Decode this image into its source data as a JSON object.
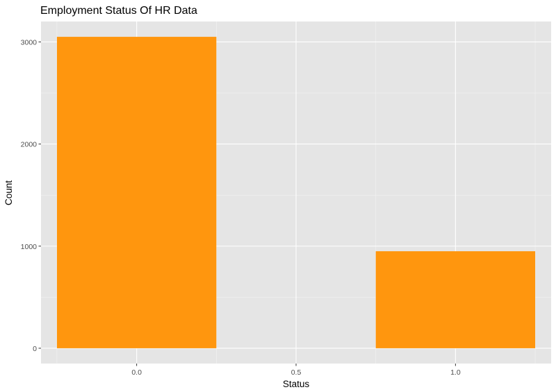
{
  "chart_data": {
    "type": "bar",
    "title": "Employment Status Of HR Data",
    "xlabel": "Status",
    "ylabel": "Count",
    "x": [
      0,
      1
    ],
    "values": [
      3050,
      950
    ],
    "bar_width": 1.0,
    "xlim": [
      -0.3,
      1.3
    ],
    "ylim": [
      -150,
      3200
    ],
    "x_ticks": [
      0.0,
      0.5,
      1.0
    ],
    "x_tick_labels": [
      "0.0",
      "0.5",
      "1.0"
    ],
    "y_ticks": [
      0,
      1000,
      2000,
      3000
    ],
    "y_tick_labels": [
      "0",
      "1000",
      "2000",
      "3000"
    ],
    "grid": true,
    "legend": "none",
    "colors": {
      "bar": "#FF960E",
      "panel": "#E5E5E5",
      "grid_major": "#FFFFFF",
      "grid_minor": "#F2F2F2",
      "tick_text": "#4D4D4D",
      "tick_mark": "#333333"
    }
  }
}
